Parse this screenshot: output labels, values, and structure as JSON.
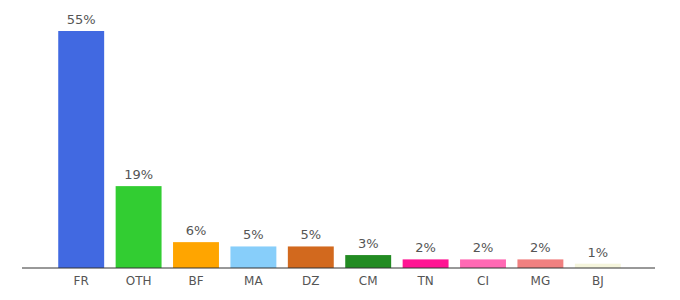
{
  "chart_data": {
    "type": "bar",
    "categories": [
      "FR",
      "OTH",
      "BF",
      "MA",
      "DZ",
      "CM",
      "TN",
      "CI",
      "MG",
      "BJ"
    ],
    "values": [
      55,
      19,
      6,
      5,
      5,
      3,
      2,
      2,
      2,
      1
    ],
    "value_labels": [
      "55%",
      "19%",
      "6%",
      "5%",
      "5%",
      "3%",
      "2%",
      "2%",
      "2%",
      "1%"
    ],
    "colors": [
      "#4169e1",
      "#32cd32",
      "#ffa500",
      "#87cefa",
      "#d2691e",
      "#228b22",
      "#ff1493",
      "#ff69b4",
      "#f08080",
      "#f5f5dc"
    ],
    "ylim": [
      0,
      55
    ],
    "data_labels": true,
    "tick_labels": "x",
    "grid": false
  }
}
